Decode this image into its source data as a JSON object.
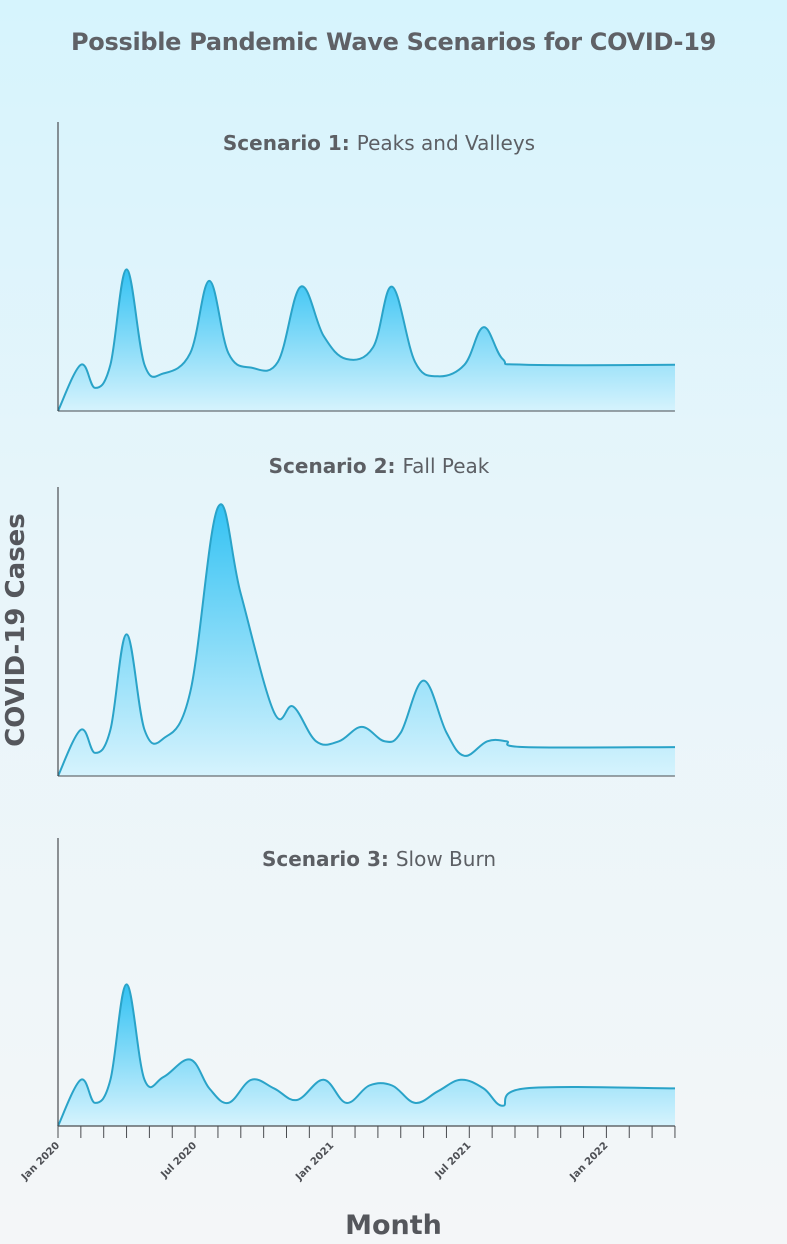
{
  "title": "Possible Pandemic Wave Scenarios for COVID-19",
  "colors": {
    "line": "#2aa3c8",
    "fill_top": "#33c2f3",
    "fill_bottom": "#d6f3fd",
    "axis": "#4a4c50"
  },
  "chart_data": {
    "type": "area",
    "xlabel": "Month",
    "ylabel": "COVID-19 Cases",
    "x_ticks": [
      "Jan 2020",
      "Jul 2020",
      "Jan 2021",
      "Jul 2021",
      "Jan 2022"
    ],
    "x_range": [
      "Jan 2020",
      "Apr 2022"
    ],
    "grid": false,
    "panels": [
      {
        "title_bold": "Scenario 1:",
        "title_rest": "Peaks and Valleys",
        "points": [
          [
            "2020-01-01",
            0
          ],
          [
            "2020-02-01",
            0.16
          ],
          [
            "2020-02-20",
            0.08
          ],
          [
            "2020-03-10",
            0.16
          ],
          [
            "2020-04-01",
            0.49
          ],
          [
            "2020-04-25",
            0.16
          ],
          [
            "2020-05-20",
            0.13
          ],
          [
            "2020-06-25",
            0.2
          ],
          [
            "2020-07-20",
            0.45
          ],
          [
            "2020-08-15",
            0.2
          ],
          [
            "2020-09-15",
            0.15
          ],
          [
            "2020-10-20",
            0.17
          ],
          [
            "2020-11-20",
            0.43
          ],
          [
            "2020-12-20",
            0.26
          ],
          [
            "2021-01-20",
            0.18
          ],
          [
            "2021-02-25",
            0.22
          ],
          [
            "2021-03-20",
            0.43
          ],
          [
            "2021-04-20",
            0.17
          ],
          [
            "2021-05-20",
            0.12
          ],
          [
            "2021-06-25",
            0.16
          ],
          [
            "2021-07-20",
            0.29
          ],
          [
            "2021-08-15",
            0.18
          ],
          [
            "2021-09-15",
            0.16
          ]
        ]
      },
      {
        "title_bold": "Scenario 2:",
        "title_rest": "Fall Peak",
        "points": [
          [
            "2020-01-01",
            0
          ],
          [
            "2020-02-01",
            0.16
          ],
          [
            "2020-02-20",
            0.08
          ],
          [
            "2020-03-10",
            0.16
          ],
          [
            "2020-04-01",
            0.49
          ],
          [
            "2020-04-25",
            0.16
          ],
          [
            "2020-05-20",
            0.13
          ],
          [
            "2020-06-25",
            0.29
          ],
          [
            "2020-08-01",
            0.93
          ],
          [
            "2020-09-01",
            0.63
          ],
          [
            "2020-10-15",
            0.22
          ],
          [
            "2020-11-10",
            0.24
          ],
          [
            "2020-12-10",
            0.12
          ],
          [
            "2021-01-10",
            0.12
          ],
          [
            "2021-02-10",
            0.17
          ],
          [
            "2021-03-10",
            0.12
          ],
          [
            "2021-04-01",
            0.15
          ],
          [
            "2021-05-01",
            0.33
          ],
          [
            "2021-06-01",
            0.15
          ],
          [
            "2021-06-25",
            0.07
          ],
          [
            "2021-07-25",
            0.12
          ],
          [
            "2021-08-20",
            0.12
          ],
          [
            "2021-09-15",
            0.1
          ]
        ]
      },
      {
        "title_bold": "Scenario 3:",
        "title_rest": "Slow Burn",
        "points": [
          [
            "2020-01-01",
            0
          ],
          [
            "2020-02-01",
            0.16
          ],
          [
            "2020-02-20",
            0.08
          ],
          [
            "2020-03-10",
            0.16
          ],
          [
            "2020-04-01",
            0.49
          ],
          [
            "2020-04-25",
            0.16
          ],
          [
            "2020-05-20",
            0.17
          ],
          [
            "2020-06-25",
            0.23
          ],
          [
            "2020-07-20",
            0.13
          ],
          [
            "2020-08-15",
            0.08
          ],
          [
            "2020-09-15",
            0.16
          ],
          [
            "2020-10-15",
            0.13
          ],
          [
            "2020-11-15",
            0.09
          ],
          [
            "2020-12-20",
            0.16
          ],
          [
            "2021-01-20",
            0.08
          ],
          [
            "2021-02-20",
            0.14
          ],
          [
            "2021-03-20",
            0.14
          ],
          [
            "2021-04-20",
            0.08
          ],
          [
            "2021-05-20",
            0.12
          ],
          [
            "2021-06-20",
            0.16
          ],
          [
            "2021-07-20",
            0.13
          ],
          [
            "2021-08-15",
            0.07
          ],
          [
            "2021-09-15",
            0.13
          ]
        ]
      }
    ]
  }
}
